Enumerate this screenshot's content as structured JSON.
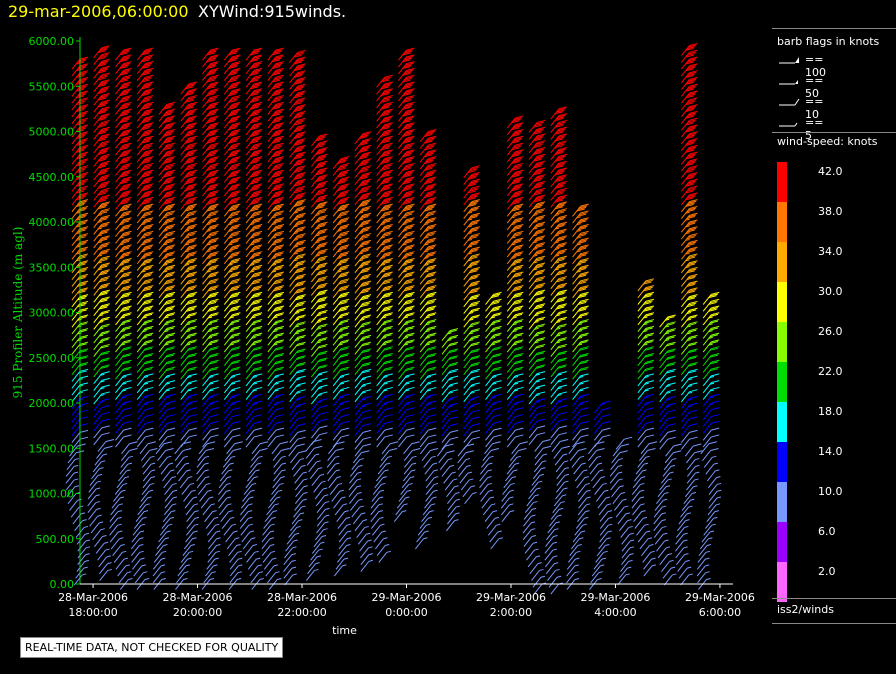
{
  "header": {
    "time": "29-mar-2006,06:00:00",
    "title": "XYWind:915winds."
  },
  "footer": {
    "disclaimer": "REAL-TIME DATA, NOT CHECKED FOR QUALITY"
  },
  "legend": {
    "barb_title": "barb flags in knots",
    "barb_flags": [
      {
        "label": "== 100",
        "icon": "barb-flag-100-icon"
      },
      {
        "label": "== 50",
        "icon": "barb-flag-50-icon"
      },
      {
        "label": "== 10",
        "icon": "barb-flag-10-icon"
      },
      {
        "label": "== 5",
        "icon": "barb-flag-5-icon"
      }
    ],
    "speed_title": "wind-speed: knots",
    "color_scale": [
      {
        "label": "42.0",
        "color": "#ff0000"
      },
      {
        "label": "38.0",
        "color": "#ff7700"
      },
      {
        "label": "34.0",
        "color": "#ffaa00"
      },
      {
        "label": "30.0",
        "color": "#ffff00"
      },
      {
        "label": "26.0",
        "color": "#88ff00"
      },
      {
        "label": "22.0",
        "color": "#00dd00"
      },
      {
        "label": "18.0",
        "color": "#00ffff"
      },
      {
        "label": "14.0",
        "color": "#0000ff"
      },
      {
        "label": "10.0",
        "color": "#7799ff"
      },
      {
        "label": "6.0",
        "color": "#9900ff"
      },
      {
        "label": "2.0",
        "color": "#ff66ff"
      }
    ],
    "source": "iss2/winds"
  },
  "chart_data": {
    "type": "scatter",
    "subtype": "wind-barb profile time-height",
    "title": "XYWind:915winds.",
    "xlabel": "time",
    "ylabel": "915 Profiler Altitude (m agl)",
    "ylim": [
      0,
      6000
    ],
    "xlim": [
      "2006-03-28 17:46",
      "2006-03-29 06:15"
    ],
    "yticks": [
      "0.00",
      "500.00",
      "1000.00",
      "1500.00",
      "2000.00",
      "2500.00",
      "3000.00",
      "3500.00",
      "4000.00",
      "4500.00",
      "5000.00",
      "5500.00",
      "6000.00"
    ],
    "xticks": [
      {
        "date": "28-Mar-2006",
        "time": "18:00:00"
      },
      {
        "date": "28-Mar-2006",
        "time": "20:00:00"
      },
      {
        "date": "28-Mar-2006",
        "time": "22:00:00"
      },
      {
        "date": "29-Mar-2006",
        "time": "0:00:00"
      },
      {
        "date": "29-Mar-2006",
        "time": "2:00:00"
      },
      {
        "date": "29-Mar-2006",
        "time": "4:00:00"
      },
      {
        "date": "29-Mar-2006",
        "time": "6:00:00"
      }
    ],
    "speed_units": "knots",
    "profiles": [
      {
        "time": "28-Mar 17:45",
        "top": 5800,
        "bottom": 100
      },
      {
        "time": "28-Mar 18:10",
        "top": 5950,
        "bottom": 150
      },
      {
        "time": "28-Mar 18:35",
        "top": 5950,
        "bottom": 50
      },
      {
        "time": "28-Mar 19:00",
        "top": 5900,
        "bottom": 50
      },
      {
        "time": "28-Mar 19:25",
        "top": 5350,
        "bottom": 50
      },
      {
        "time": "28-Mar 19:50",
        "top": 5550,
        "bottom": 50
      },
      {
        "time": "28-Mar 20:15",
        "top": 5950,
        "bottom": 50
      },
      {
        "time": "28-Mar 20:40",
        "top": 5950,
        "bottom": 50
      },
      {
        "time": "28-Mar 21:05",
        "top": 5950,
        "bottom": 50
      },
      {
        "time": "28-Mar 21:30",
        "top": 5900,
        "bottom": 50
      },
      {
        "time": "28-Mar 21:55",
        "top": 5900,
        "bottom": 100
      },
      {
        "time": "28-Mar 22:20",
        "top": 5000,
        "bottom": 150
      },
      {
        "time": "28-Mar 22:45",
        "top": 4700,
        "bottom": 200
      },
      {
        "time": "28-Mar 23:10",
        "top": 5000,
        "bottom": 250
      },
      {
        "time": "28-Mar 23:35",
        "top": 5600,
        "bottom": 350
      },
      {
        "time": "29-Mar 00:00",
        "top": 5950,
        "bottom": 800
      },
      {
        "time": "29-Mar 00:25",
        "top": 5050,
        "bottom": 500
      },
      {
        "time": "29-Mar 00:50",
        "top": 2800,
        "bottom": 700
      },
      {
        "time": "29-Mar 01:15",
        "top": 4600,
        "bottom": 1000
      },
      {
        "time": "29-Mar 01:40",
        "top": 3200,
        "bottom": 500
      },
      {
        "time": "29-Mar 02:05",
        "top": 5200,
        "bottom": 800
      },
      {
        "time": "29-Mar 02:30",
        "top": 5100,
        "bottom": 0
      },
      {
        "time": "29-Mar 02:55",
        "top": 5300,
        "bottom": 0
      },
      {
        "time": "29-Mar 03:20",
        "top": 4200,
        "bottom": 50
      },
      {
        "time": "29-Mar 03:45",
        "top": 2000,
        "bottom": 50
      },
      {
        "time": "29-Mar 04:10",
        "top": 1600,
        "bottom": 100
      },
      {
        "time": "29-Mar 04:35",
        "top": 3400,
        "bottom": 200
      },
      {
        "time": "29-Mar 05:00",
        "top": 3000,
        "bottom": 100
      },
      {
        "time": "29-Mar 05:25",
        "top": 5950,
        "bottom": 100
      },
      {
        "time": "29-Mar 05:50",
        "top": 3200,
        "bottom": 50
      }
    ],
    "speed_by_altitude": [
      {
        "altitude": 250,
        "speed": 8
      },
      {
        "altitude": 750,
        "speed": 9
      },
      {
        "altitude": 1250,
        "speed": 8
      },
      {
        "altitude": 1750,
        "speed": 12
      },
      {
        "altitude": 2250,
        "speed": 18
      },
      {
        "altitude": 2750,
        "speed": 26
      },
      {
        "altitude": 3250,
        "speed": 32
      },
      {
        "altitude": 3750,
        "speed": 37
      },
      {
        "altitude": 4250,
        "speed": 40
      },
      {
        "altitude": 4750,
        "speed": 42
      },
      {
        "altitude": 5250,
        "speed": 43
      },
      {
        "altitude": 5750,
        "speed": 43
      }
    ]
  }
}
